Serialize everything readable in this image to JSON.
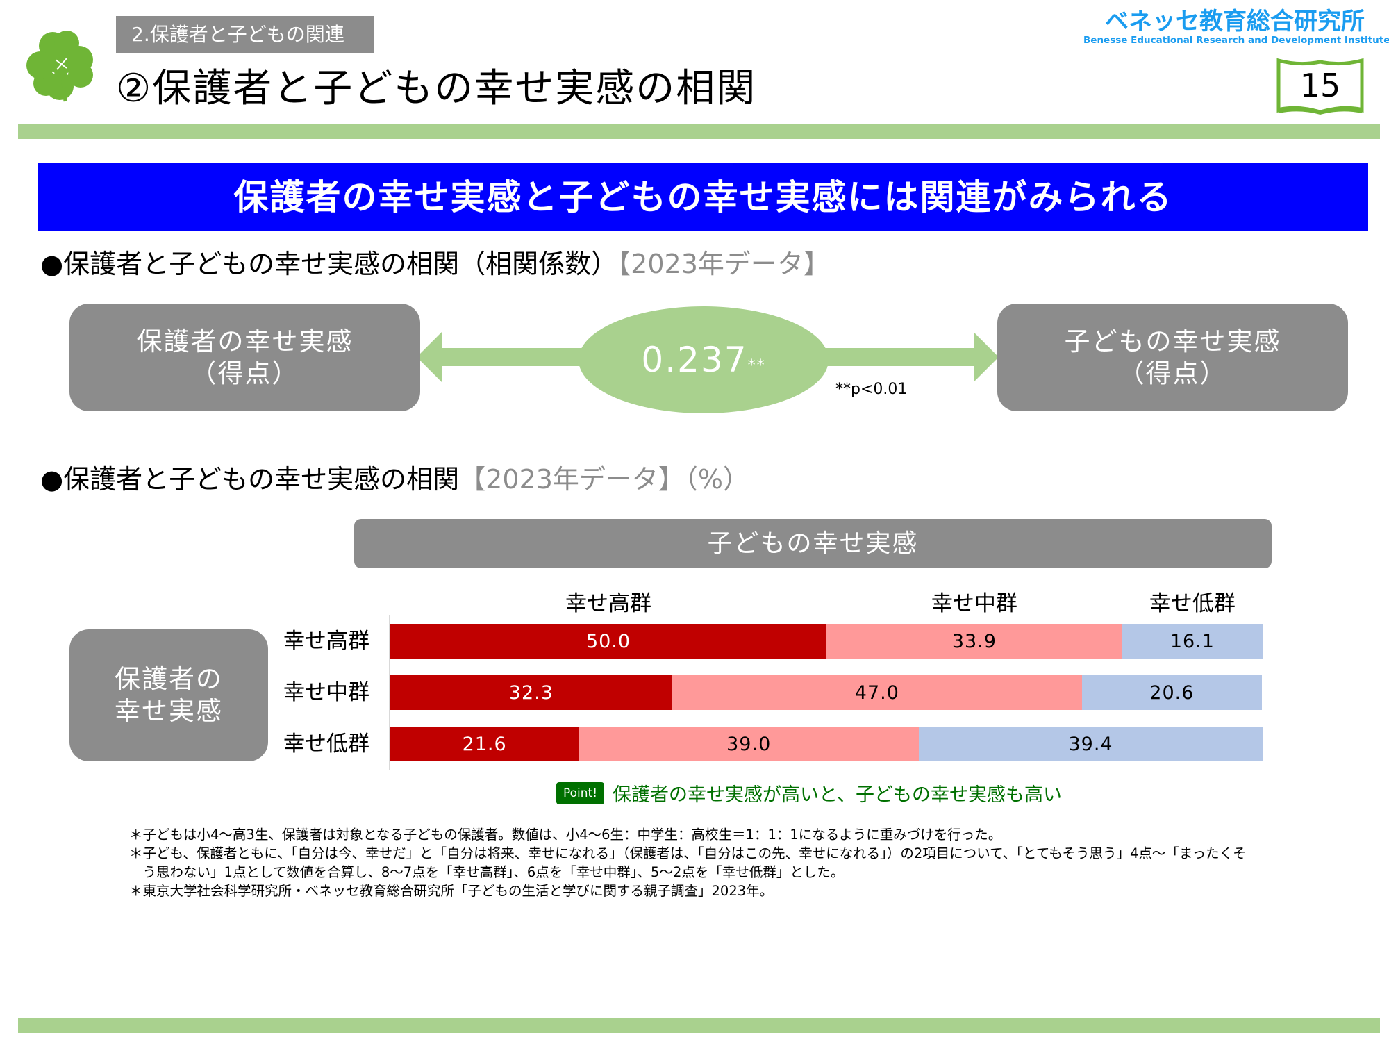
{
  "header": {
    "section_tag": "2.保護者と子どもの関連",
    "title": "②保護者と子どもの幸せ実感の相関",
    "logo_jp": "ベネッセ教育総合研究所",
    "logo_en": "Benesse  Educational Research and Development Institute",
    "page_number": "15"
  },
  "banner": "保護者の幸せ実感と子どもの幸せ実感には関連がみられる",
  "section1": {
    "heading": "●保護者と子どもの幸せ実感の相関（相関係数）",
    "heading_note": "【2023年データ】",
    "left_box": [
      "保護者の幸せ実感",
      "（得点）"
    ],
    "right_box": [
      "子どもの幸せ実感",
      "（得点）"
    ],
    "coefficient": "0.237",
    "significance_mark": "**",
    "p_note": "**p<0.01"
  },
  "section2": {
    "heading": "●保護者と子どもの幸せ実感の相関",
    "heading_note": "【2023年データ】（%）",
    "point_badge": "Point!",
    "point_text": "保護者の幸せ実感が高いと、子どもの幸せ実感も高い"
  },
  "chart_data": {
    "type": "bar",
    "stacked": true,
    "orientation": "horizontal",
    "title": "子どもの幸せ実感",
    "row_axis_title": "保護者の幸せ実感",
    "categories": [
      "幸せ高群",
      "幸せ中群",
      "幸せ低群"
    ],
    "series": [
      {
        "name": "幸せ高群",
        "color": "#c00000",
        "values": [
          50.0,
          32.3,
          21.6
        ]
      },
      {
        "name": "幸せ中群",
        "color": "#ff9999",
        "values": [
          33.9,
          47.0,
          39.0
        ]
      },
      {
        "name": "幸せ低群",
        "color": "#b4c7e7",
        "values": [
          16.1,
          20.6,
          39.4
        ]
      }
    ],
    "xlim": [
      0,
      100
    ]
  },
  "footnotes": [
    "＊子どもは小4～高3生、保護者は対象となる子どもの保護者。数値は、小4～6生：中学生：高校生＝1：1：1になるように重みづけを行った。",
    "＊子ども、保護者ともに、「自分は今、幸せだ」と「自分は将来、幸せになれる」（保護者は、「自分はこの先、幸せになれる」）の2項目について、「とてもそう思う」4点～「まったくそ",
    "　う思わない」1点として数値を合算し、8～7点を「幸せ高群」、6点を「幸せ中群」、5～2点を「幸せ低群」とした。",
    "＊東京大学社会科学研究所・ベネッセ教育総合研究所「子どもの生活と学びに関する親子調査」2023年。"
  ]
}
